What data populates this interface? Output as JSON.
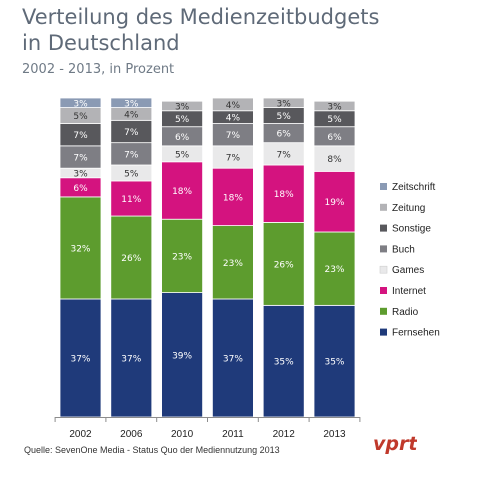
{
  "header": {
    "title_line1": "Verteilung des Medienzeitbudgets",
    "title_line2": "in Deutschland",
    "subtitle": "2002 - 2013, in Prozent"
  },
  "source": "Quelle: SevenOne Media - Status Quo der Mediennutzung 2013",
  "logo": {
    "text": "vprt",
    "color": "#c0392b"
  },
  "chart_data": {
    "type": "bar",
    "stacked": true,
    "ylim": [
      0,
      100
    ],
    "grid": false,
    "legend_position": "right",
    "categories": [
      "2002",
      "2006",
      "2010",
      "2011",
      "2012",
      "2013"
    ],
    "series": [
      {
        "name": "Fernsehen",
        "color": "#1f3a7a",
        "values": [
          37,
          37,
          39,
          37,
          35,
          35
        ],
        "labels": [
          "37%",
          "37%",
          "39%",
          "37%",
          "35%",
          "35%"
        ]
      },
      {
        "name": "Radio",
        "color": "#5d9c2e",
        "values": [
          32,
          26,
          23,
          23,
          26,
          23
        ],
        "labels": [
          "32%",
          "26%",
          "23%",
          "23%",
          "26%",
          "23%"
        ]
      },
      {
        "name": "Internet",
        "color": "#d4137f",
        "values": [
          6,
          11,
          18,
          18,
          18,
          19
        ],
        "labels": [
          "6%",
          "11%",
          "18%",
          "18%",
          "18%",
          "19%"
        ]
      },
      {
        "name": "Games",
        "color": "#e9e9ea",
        "values": [
          3,
          5,
          5,
          7,
          7,
          8
        ],
        "labels": [
          "3%",
          "5%",
          "5%",
          "7%",
          "7%",
          "8%"
        ]
      },
      {
        "name": "Buch",
        "color": "#7e7e84",
        "values": [
          7,
          7,
          6,
          7,
          6,
          6
        ],
        "labels": [
          "7%",
          "7%",
          "6%",
          "7%",
          "6%",
          "6%"
        ]
      },
      {
        "name": "Sonstige",
        "color": "#58585c",
        "values": [
          7,
          7,
          5,
          4,
          5,
          5
        ],
        "labels": [
          "7%",
          "7%",
          "5%",
          "4%",
          "5%",
          "5%"
        ]
      },
      {
        "name": "Zeitung",
        "color": "#b3b3b6",
        "values": [
          5,
          4,
          3,
          4,
          3,
          3
        ],
        "labels": [
          "5%",
          "4%",
          "3%",
          "4%",
          "3%",
          "3%"
        ]
      },
      {
        "name": "Zeitschrift",
        "color": "#8a9ab4",
        "values": [
          3,
          3,
          0,
          0,
          0,
          0
        ],
        "labels": [
          "3%",
          "3%",
          "",
          "",
          "",
          ""
        ]
      }
    ]
  }
}
